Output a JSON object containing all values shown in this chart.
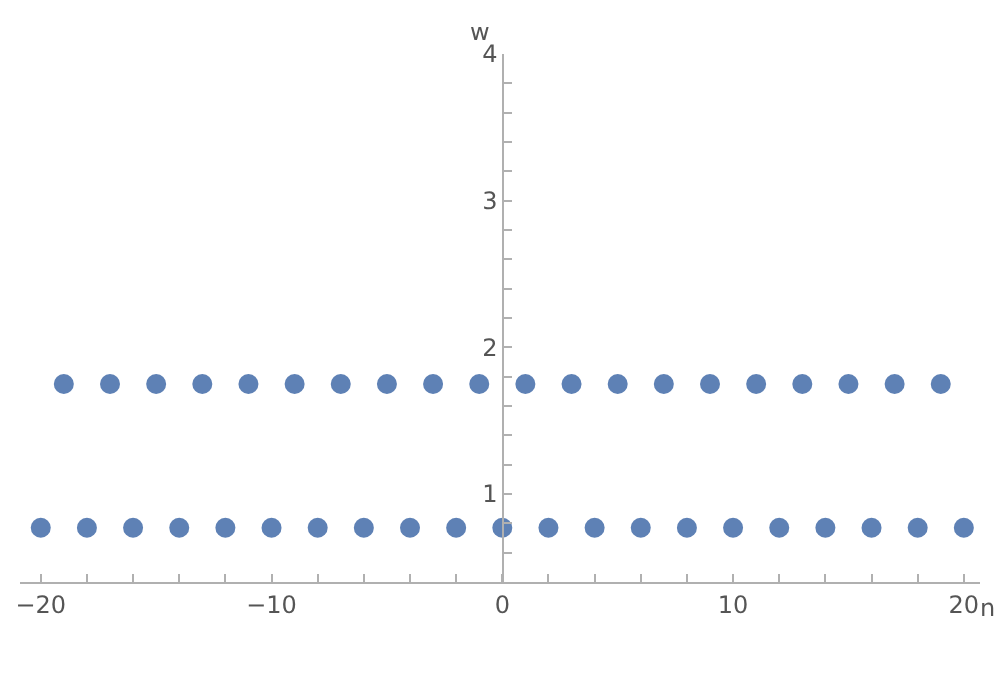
{
  "chart_data": {
    "type": "scatter",
    "xlabel": "n",
    "ylabel": "w",
    "series": [
      {
        "color": "#5e81b5",
        "x": [
          -20,
          -18,
          -16,
          -14,
          -12,
          -10,
          -8,
          -6,
          -4,
          -2,
          0,
          2,
          4,
          6,
          8,
          10,
          12,
          14,
          16,
          18,
          20
        ],
        "values": [
          0.77,
          0.77,
          0.77,
          0.77,
          0.77,
          0.77,
          0.77,
          0.77,
          0.77,
          0.77,
          0.77,
          0.77,
          0.77,
          0.77,
          0.77,
          0.77,
          0.77,
          0.77,
          0.77,
          0.77,
          0.77
        ]
      },
      {
        "color": "#5e81b5",
        "x": [
          -19,
          -17,
          -15,
          -13,
          -11,
          -9,
          -7,
          -5,
          -3,
          -1,
          1,
          3,
          5,
          7,
          9,
          11,
          13,
          15,
          17,
          19
        ],
        "values": [
          1.75,
          1.75,
          1.75,
          1.75,
          1.75,
          1.75,
          1.75,
          1.75,
          1.75,
          1.75,
          1.75,
          1.75,
          1.75,
          1.75,
          1.75,
          1.75,
          1.75,
          1.75,
          1.75,
          1.75
        ]
      }
    ],
    "xlim": [
      -20.9,
      20.7
    ],
    "ylim": [
      0.4,
      4.0
    ],
    "xticks": [
      {
        "value": -20,
        "label": "−20"
      },
      {
        "value": -18,
        "label": null
      },
      {
        "value": -16,
        "label": null
      },
      {
        "value": -14,
        "label": null
      },
      {
        "value": -12,
        "label": null
      },
      {
        "value": -10,
        "label": "−10"
      },
      {
        "value": -8,
        "label": null
      },
      {
        "value": -6,
        "label": null
      },
      {
        "value": -4,
        "label": null
      },
      {
        "value": -2,
        "label": null
      },
      0,
      {
        "value": 2,
        "label": null
      },
      {
        "value": 4,
        "label": null
      },
      {
        "value": 6,
        "label": null
      },
      {
        "value": 8,
        "label": null
      },
      10,
      {
        "value": 12,
        "label": null
      },
      {
        "value": 14,
        "label": null
      },
      {
        "value": 16,
        "label": null
      },
      {
        "value": 18,
        "label": null
      },
      20
    ],
    "yticks": [
      {
        "value": 0.4,
        "label": null
      },
      {
        "value": 0.6,
        "label": null
      },
      {
        "value": 0.8,
        "label": null
      },
      1,
      {
        "value": 1.2,
        "label": null
      },
      {
        "value": 1.4,
        "label": null
      },
      {
        "value": 1.6,
        "label": null
      },
      {
        "value": 1.8,
        "label": null
      },
      2,
      {
        "value": 2.2,
        "label": null
      },
      {
        "value": 2.4,
        "label": null
      },
      {
        "value": 2.6,
        "label": null
      },
      {
        "value": 2.8,
        "label": null
      },
      3,
      {
        "value": 3.2,
        "label": null
      },
      {
        "value": 3.4,
        "label": null
      },
      {
        "value": 3.6,
        "label": null
      },
      {
        "value": 3.8,
        "label": null
      },
      4
    ],
    "legend": false,
    "marker": "circle"
  }
}
